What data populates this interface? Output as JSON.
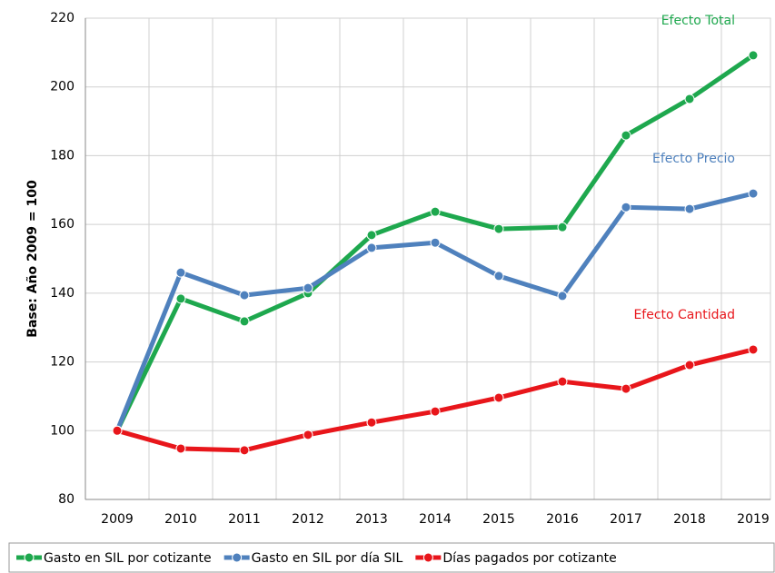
{
  "chart_data": {
    "type": "line",
    "y_label": "Base: Año 2009 = 100",
    "categories": [
      "2009",
      "2010",
      "2011",
      "2012",
      "2013",
      "2014",
      "2015",
      "2016",
      "2017",
      "2018",
      "2019"
    ],
    "series": [
      {
        "name": "Gasto en SIL por cotizante",
        "color": "#1ea84e",
        "values": [
          100,
          138.4,
          131.8,
          140,
          156.9,
          163.7,
          158.7,
          159.2,
          185.9,
          196.5,
          209.2
        ]
      },
      {
        "name": "Gasto en SIL por día SIL",
        "color": "#4f81bd",
        "values": [
          100,
          146,
          139.4,
          141.5,
          153.2,
          154.7,
          145,
          139.2,
          165,
          164.5,
          169
        ]
      },
      {
        "name": "Días pagados por cotizante",
        "color": "#e8161b",
        "values": [
          100,
          94.8,
          94.3,
          98.8,
          102.4,
          105.6,
          109.6,
          114.3,
          112.2,
          119.1,
          123.6
        ]
      }
    ],
    "annotations": [
      {
        "text": "Efecto Total",
        "series": 0
      },
      {
        "text": "Efecto Precio",
        "series": 1
      },
      {
        "text": "Efecto Cantidad",
        "series": 2
      }
    ],
    "ylim": [
      80,
      220
    ],
    "yticks": [
      80,
      100,
      120,
      140,
      160,
      180,
      200,
      220
    ],
    "grid": true,
    "legend": "bottom"
  }
}
